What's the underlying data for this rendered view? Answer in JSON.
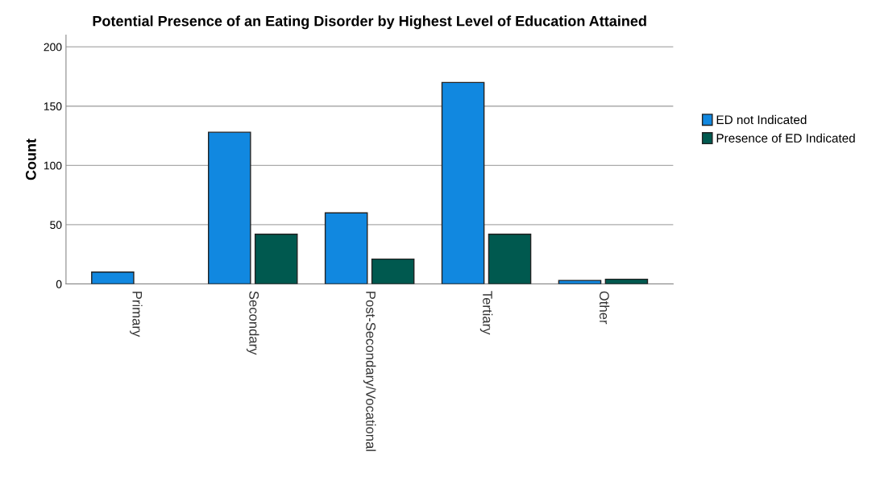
{
  "chart_data": {
    "type": "bar",
    "title": "Potential Presence of an Eating Disorder by Highest Level of Education Attained",
    "ylabel": "Count",
    "categories": [
      "Primary",
      "Secondary",
      "Post-Secondary/Vocational",
      "Tertiary",
      "Other"
    ],
    "series": [
      {
        "name": "ED not Indicated",
        "color": "#1188e0",
        "values": [
          10,
          128,
          60,
          170,
          3
        ]
      },
      {
        "name": "Presence of ED Indicated",
        "color": "#00594f",
        "values": [
          null,
          42,
          21,
          42,
          4
        ]
      }
    ],
    "ylim": [
      0,
      210
    ],
    "yticks": [
      0,
      50,
      100,
      150,
      200
    ],
    "grid": "y",
    "legend": "right"
  }
}
